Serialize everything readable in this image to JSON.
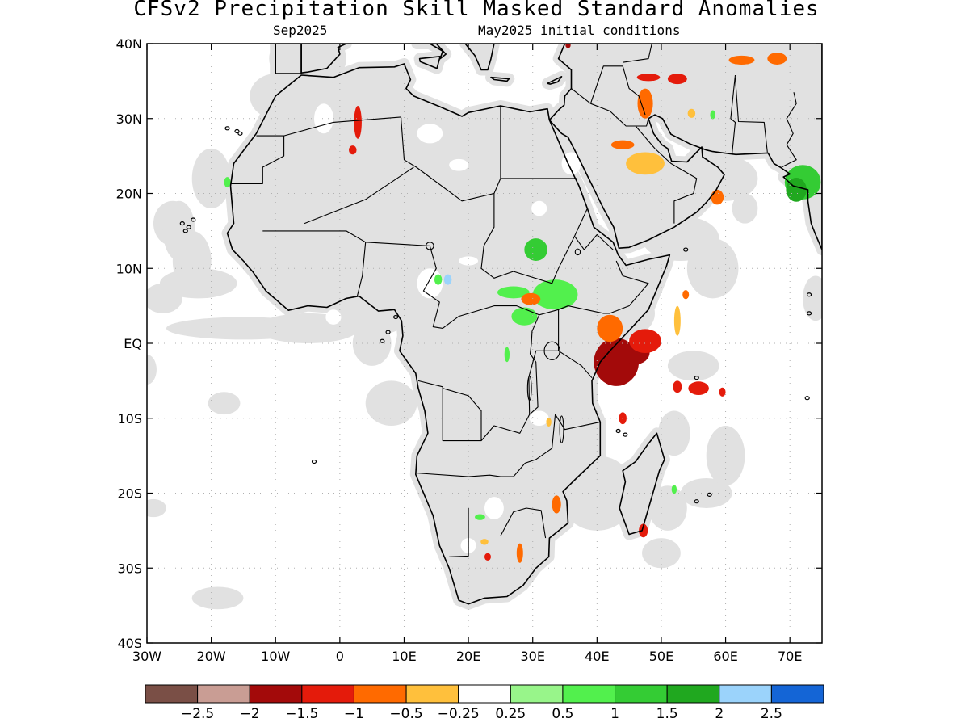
{
  "title": "CFSv2 Precipitation Skill Masked Standard Anomalies",
  "subtitle_left": "Sep2025",
  "subtitle_right": "May2025 initial conditions",
  "colors": {
    "masked": "#e1e1e1",
    "coast": "#000000",
    "grid": "#b0b0b0"
  },
  "axes": {
    "x_ticks": [
      "30W",
      "20W",
      "10W",
      "0",
      "10E",
      "20E",
      "30E",
      "40E",
      "50E",
      "60E",
      "70E"
    ],
    "x_values": [
      -30,
      -20,
      -10,
      0,
      10,
      20,
      30,
      40,
      50,
      60,
      70
    ],
    "y_ticks": [
      "40N",
      "30N",
      "20N",
      "10N",
      "EQ",
      "10S",
      "20S",
      "30S",
      "40S"
    ],
    "y_values": [
      40,
      30,
      20,
      10,
      0,
      -10,
      -20,
      -30,
      -40
    ],
    "lon_range": [
      -30,
      75
    ],
    "lat_range": [
      -40,
      40
    ],
    "grid": true
  },
  "colorbar": {
    "colors": [
      "#7a4f46",
      "#c99d94",
      "#a30a0a",
      "#e41b0b",
      "#ff6a00",
      "#ffc03c",
      "#ffffff",
      "#98f58a",
      "#52f04d",
      "#34cc34",
      "#20a81f",
      "#9bd3fb",
      "#1465d6"
    ],
    "labels": [
      "−2.5",
      "−2",
      "−1.5",
      "−1",
      "−0.5",
      "−0.25",
      "0.25",
      "0.5",
      "1",
      "1.5",
      "2",
      "2.5"
    ]
  },
  "anomaly_patches": [
    {
      "lon": 43.0,
      "lat": -2.5,
      "rx": 3.5,
      "ry": 3.2,
      "color": "#a30a0a"
    },
    {
      "lon": 46.0,
      "lat": -1.2,
      "rx": 2.2,
      "ry": 1.6,
      "color": "#a30a0a"
    },
    {
      "lon": 42.0,
      "lat": 2.0,
      "rx": 2.0,
      "ry": 1.8,
      "color": "#ff6a00"
    },
    {
      "lon": 47.5,
      "lat": 0.3,
      "rx": 2.5,
      "ry": 1.6,
      "color": "#e41b0b"
    },
    {
      "lon": 55.8,
      "lat": -6.0,
      "rx": 1.6,
      "ry": 0.9,
      "color": "#e41b0b"
    },
    {
      "lon": 33.5,
      "lat": 6.5,
      "rx": 3.5,
      "ry": 2.0,
      "color": "#52f04d"
    },
    {
      "lon": 27.0,
      "lat": 6.8,
      "rx": 2.5,
      "ry": 0.8,
      "color": "#52f04d"
    },
    {
      "lon": 28.7,
      "lat": 3.6,
      "rx": 2.0,
      "ry": 1.2,
      "color": "#52f04d"
    },
    {
      "lon": 29.7,
      "lat": 5.9,
      "rx": 1.5,
      "ry": 0.8,
      "color": "#ff6a00"
    },
    {
      "lon": 30.5,
      "lat": 12.5,
      "rx": 1.8,
      "ry": 1.5,
      "color": "#34cc34"
    },
    {
      "lon": 26.0,
      "lat": -1.5,
      "rx": 0.4,
      "ry": 1.0,
      "color": "#52f04d"
    },
    {
      "lon": 72.0,
      "lat": 21.5,
      "rx": 2.8,
      "ry": 2.3,
      "color": "#34cc34"
    },
    {
      "lon": 71.0,
      "lat": 20.5,
      "rx": 1.6,
      "ry": 1.6,
      "color": "#20a81f"
    },
    {
      "lon": 47.5,
      "lat": 24.0,
      "rx": 3.0,
      "ry": 1.5,
      "color": "#ffc03c"
    },
    {
      "lon": 44.0,
      "lat": 26.5,
      "rx": 1.8,
      "ry": 0.6,
      "color": "#ff6a00"
    },
    {
      "lon": 48.0,
      "lat": 35.5,
      "rx": 1.8,
      "ry": 0.5,
      "color": "#e41b0b"
    },
    {
      "lon": 52.5,
      "lat": 35.3,
      "rx": 1.5,
      "ry": 0.7,
      "color": "#e41b0b"
    },
    {
      "lon": 47.5,
      "lat": 32.0,
      "rx": 1.2,
      "ry": 2.0,
      "color": "#ff6a00"
    },
    {
      "lon": 58.7,
      "lat": 19.5,
      "rx": 1.0,
      "ry": 1.0,
      "color": "#ff6a00"
    },
    {
      "lon": 62.5,
      "lat": 37.8,
      "rx": 2.0,
      "ry": 0.6,
      "color": "#ff6a00"
    },
    {
      "lon": 68.0,
      "lat": 38.0,
      "rx": 1.5,
      "ry": 0.8,
      "color": "#ff6a00"
    },
    {
      "lon": 2.8,
      "lat": 29.5,
      "rx": 0.6,
      "ry": 2.2,
      "color": "#e41b0b"
    },
    {
      "lon": 2.0,
      "lat": 25.8,
      "rx": 0.6,
      "ry": 0.6,
      "color": "#e41b0b"
    },
    {
      "lon": 52.5,
      "lat": 3.0,
      "rx": 0.5,
      "ry": 2.0,
      "color": "#ffc03c"
    },
    {
      "lon": 53.8,
      "lat": 6.5,
      "rx": 0.5,
      "ry": 0.6,
      "color": "#ff6a00"
    },
    {
      "lon": 33.7,
      "lat": -21.5,
      "rx": 0.7,
      "ry": 1.2,
      "color": "#ff6a00"
    },
    {
      "lon": 47.2,
      "lat": -25.0,
      "rx": 0.7,
      "ry": 0.9,
      "color": "#e41b0b"
    },
    {
      "lon": 44.0,
      "lat": -10.0,
      "rx": 0.6,
      "ry": 0.8,
      "color": "#e41b0b"
    },
    {
      "lon": 28.0,
      "lat": -28.0,
      "rx": 0.5,
      "ry": 1.3,
      "color": "#ff6a00"
    },
    {
      "lon": 23.0,
      "lat": -28.5,
      "rx": 0.5,
      "ry": 0.5,
      "color": "#e41b0b"
    },
    {
      "lon": 21.8,
      "lat": -23.2,
      "rx": 0.8,
      "ry": 0.4,
      "color": "#52f04d"
    },
    {
      "lon": 22.5,
      "lat": -26.5,
      "rx": 0.6,
      "ry": 0.4,
      "color": "#ffc03c"
    },
    {
      "lon": -17.5,
      "lat": 21.5,
      "rx": 0.5,
      "ry": 0.7,
      "color": "#52f04d"
    },
    {
      "lon": 15.3,
      "lat": 8.5,
      "rx": 0.6,
      "ry": 0.7,
      "color": "#52f04d"
    },
    {
      "lon": 16.8,
      "lat": 8.5,
      "rx": 0.6,
      "ry": 0.7,
      "color": "#9bd3fb"
    },
    {
      "lon": 54.7,
      "lat": 30.7,
      "rx": 0.6,
      "ry": 0.6,
      "color": "#ffc03c"
    },
    {
      "lon": 35.5,
      "lat": 39.8,
      "rx": 0.4,
      "ry": 0.4,
      "color": "#a30a0a"
    },
    {
      "lon": 52.0,
      "lat": -19.5,
      "rx": 0.4,
      "ry": 0.6,
      "color": "#52f04d"
    },
    {
      "lon": 59.5,
      "lat": -6.5,
      "rx": 0.5,
      "ry": 0.6,
      "color": "#e41b0b"
    },
    {
      "lon": 52.5,
      "lat": -5.8,
      "rx": 0.7,
      "ry": 0.8,
      "color": "#e41b0b"
    },
    {
      "lon": 58.0,
      "lat": 30.5,
      "rx": 0.4,
      "ry": 0.6,
      "color": "#52f04d"
    },
    {
      "lon": 32.5,
      "lat": -10.5,
      "rx": 0.4,
      "ry": 0.6,
      "color": "#ffc03c"
    }
  ]
}
